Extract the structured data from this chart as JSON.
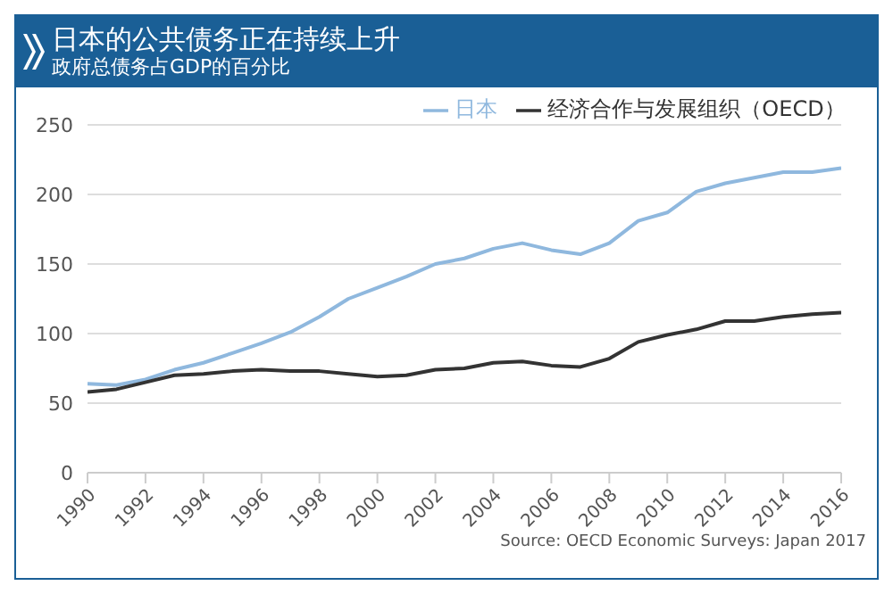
{
  "chart_data": {
    "type": "line",
    "title": "日本的公共债务正在持续上升",
    "subtitle": "政府总债务占GDP的百分比",
    "x": [
      1990,
      1991,
      1992,
      1993,
      1994,
      1995,
      1996,
      1997,
      1998,
      1999,
      2000,
      2001,
      2002,
      2003,
      2004,
      2005,
      2006,
      2007,
      2008,
      2009,
      2010,
      2011,
      2012,
      2013,
      2014,
      2015,
      2016
    ],
    "series": [
      {
        "name": "日本",
        "color": "#8fb8de",
        "values": [
          64,
          63,
          67,
          74,
          79,
          86,
          93,
          101,
          112,
          125,
          133,
          141,
          150,
          154,
          161,
          165,
          160,
          157,
          165,
          181,
          187,
          202,
          208,
          212,
          216,
          216,
          219
        ]
      },
      {
        "name": "经济合作与发展组织（OECD）",
        "color": "#333333",
        "values": [
          58,
          60,
          65,
          70,
          71,
          73,
          74,
          73,
          73,
          71,
          69,
          70,
          74,
          75,
          79,
          80,
          77,
          76,
          82,
          94,
          99,
          103,
          109,
          109,
          112,
          114,
          115
        ]
      }
    ],
    "xlim": [
      1990,
      2016
    ],
    "xticks": [
      1990,
      1992,
      1994,
      1996,
      1998,
      2000,
      2002,
      2004,
      2006,
      2008,
      2010,
      2012,
      2014,
      2016
    ],
    "ylim": [
      0,
      250
    ],
    "yticks": [
      0,
      50,
      100,
      150,
      200,
      250
    ],
    "grid": "y",
    "legend": "top",
    "marker": "none",
    "line_style": "solid",
    "annotations": [
      "Source: OECD Economic Surveys: Japan 2017"
    ]
  }
}
